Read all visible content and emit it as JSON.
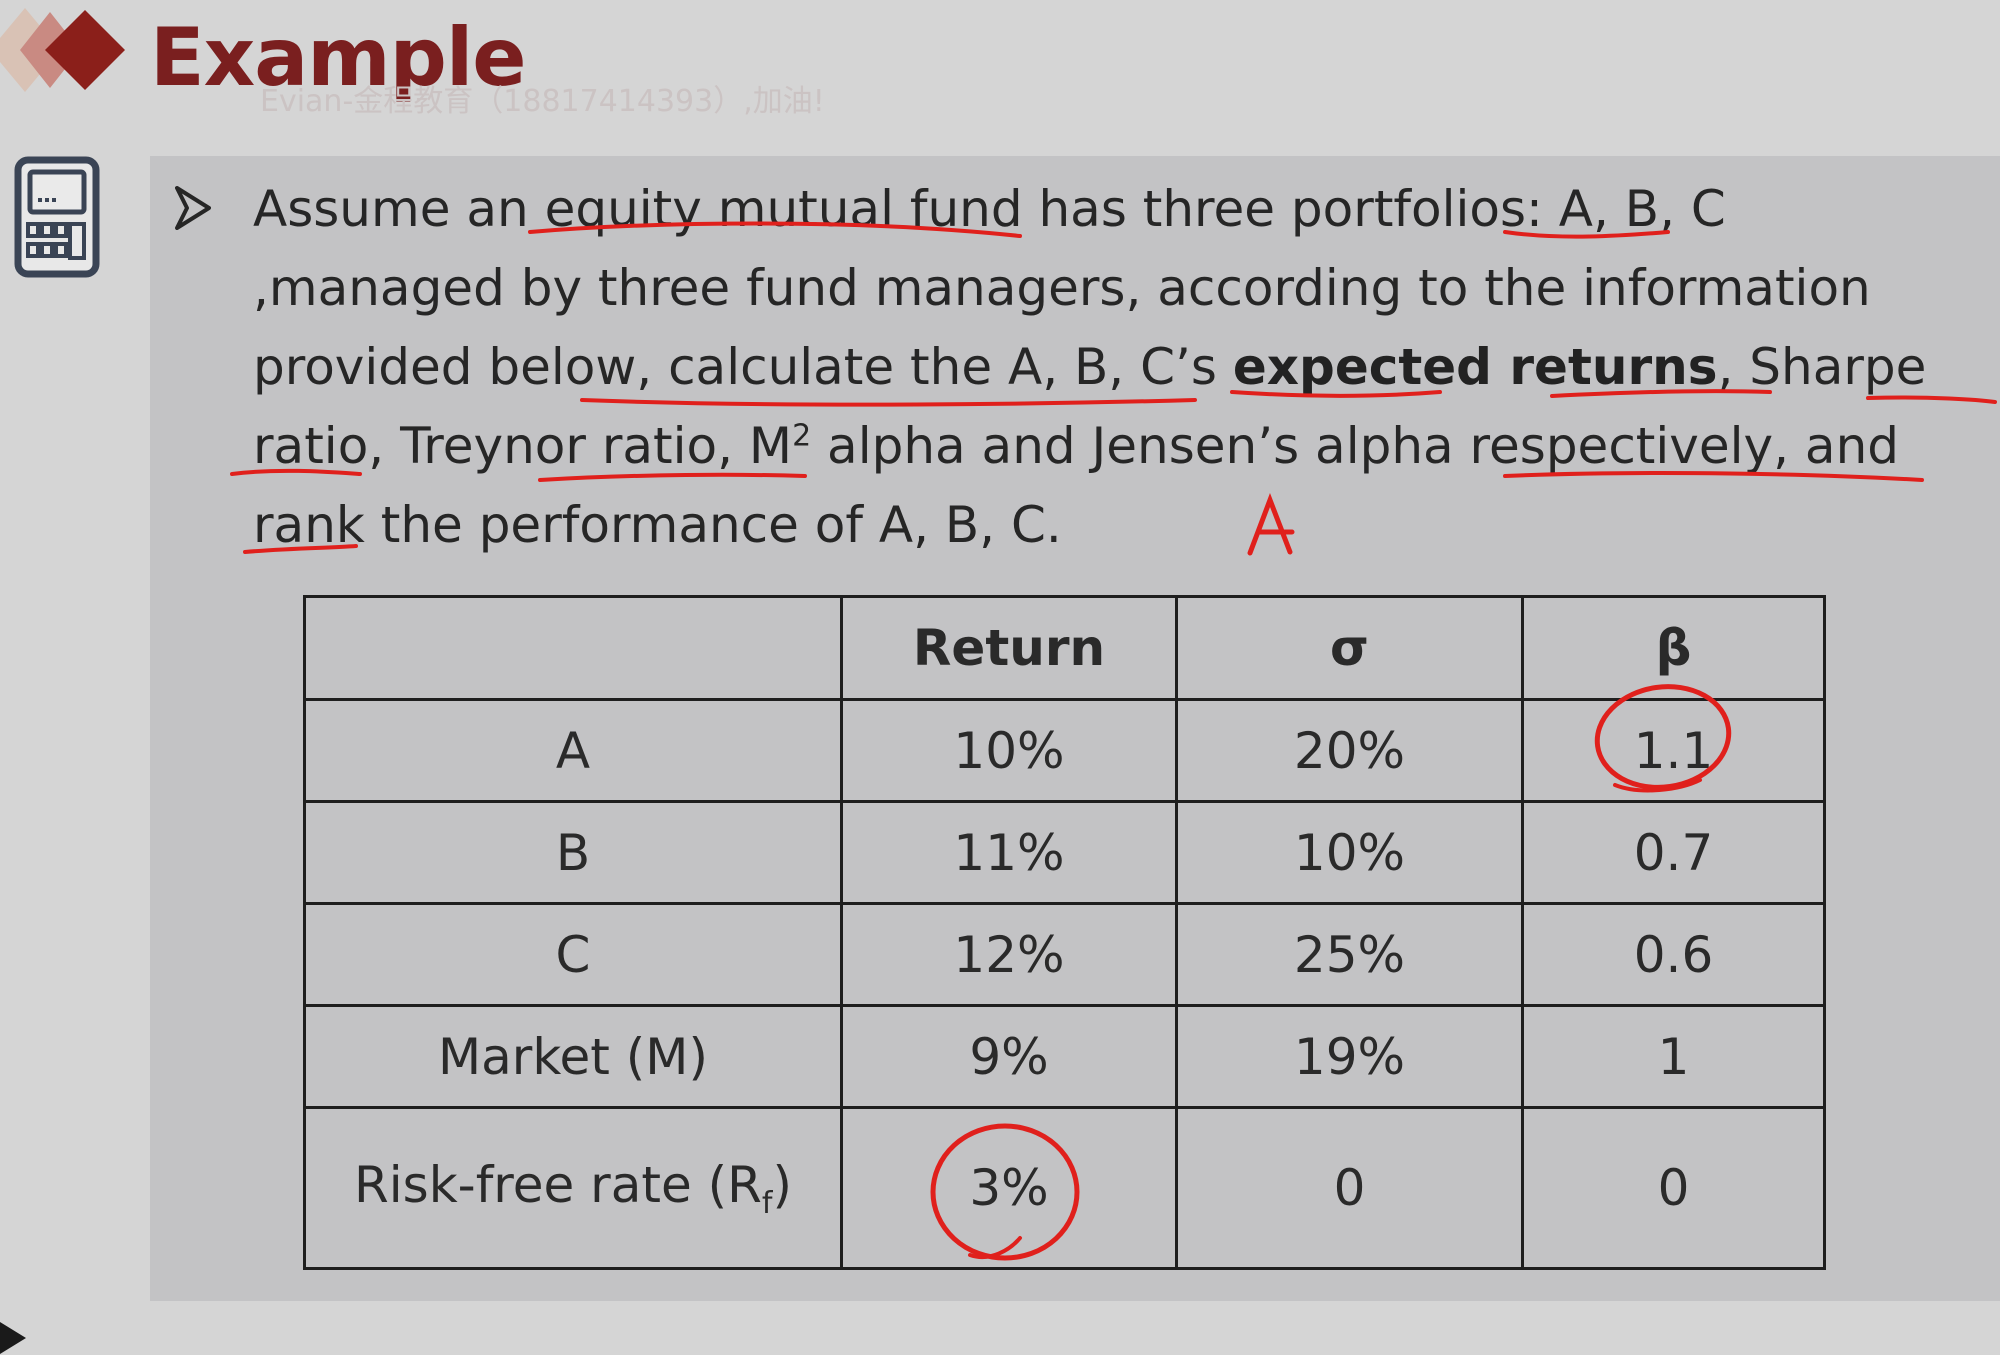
{
  "slide": {
    "title": "Example",
    "watermark": "Evian-金程教育（18817414393）,加油!"
  },
  "question": {
    "p1": "Assume an ",
    "p2": "equity mutual fund",
    "p3": " has three portfolios: ",
    "p4": "A, B, C",
    "p5": " ,managed by three fund managers, according to the information provided below, calculate the ",
    "p6": "A, B, C’s ",
    "p7": "expected returns",
    "p8": ", ",
    "p9": "Sharpe ratio",
    "p10": ", ",
    "p11": "Treynor ratio",
    "p12": ", ",
    "p13": "M",
    "p13sup": "2",
    "p14": " alpha",
    "p15": " and ",
    "p16": "Jensen’s alpha",
    "p17": " respectively,  and rank the ",
    "p18": "performance of A, B, C."
  },
  "table": {
    "headers": [
      "",
      "Return",
      "σ",
      "β"
    ],
    "rows": [
      {
        "label": "A",
        "return": "10%",
        "sigma": "20%",
        "beta": "1.1"
      },
      {
        "label": "B",
        "return": "11%",
        "sigma": "10%",
        "beta": "0.7"
      },
      {
        "label": "C",
        "return": "12%",
        "sigma": "25%",
        "beta": "0.6"
      },
      {
        "label": "Market (M)",
        "return": "9%",
        "sigma": "19%",
        "beta": "1"
      },
      {
        "label": "Risk-free rate (R",
        "label_sub": "f",
        "label_end": ")",
        "return": "3%",
        "sigma": "0",
        "beta": "0"
      }
    ]
  },
  "annotations": {
    "handwritten_letter": "A"
  },
  "colors": {
    "title": "#7a1f1f",
    "ink": "#e0201c",
    "panel": "#c3c3c5",
    "background": "#d5d5d5"
  }
}
